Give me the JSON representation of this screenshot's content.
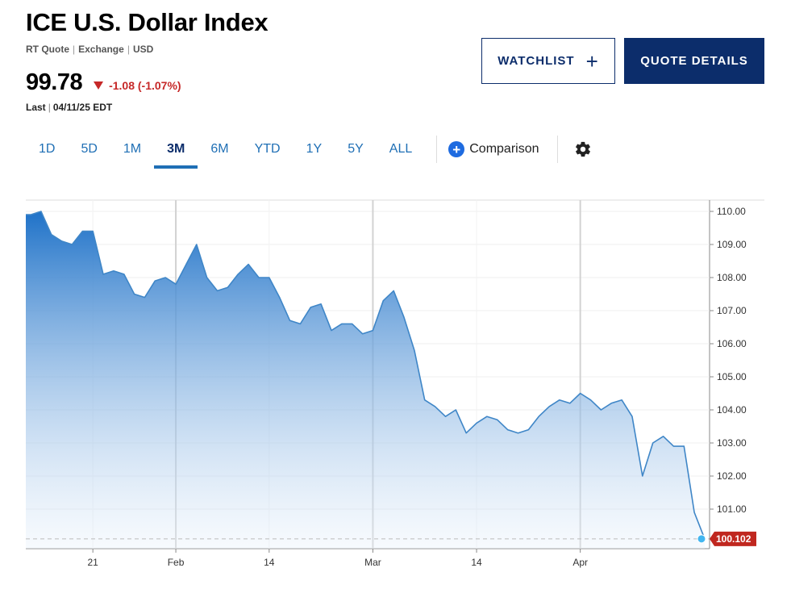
{
  "header": {
    "title": "ICE U.S. Dollar Index",
    "meta": [
      "RT Quote",
      "Exchange",
      "USD"
    ],
    "price": "99.78",
    "change": "-1.08 (-1.07%)",
    "last_label": "Last",
    "last_date": "04/11/25 EDT"
  },
  "actions": {
    "watchlist_label": "WATCHLIST",
    "quote_details_label": "QUOTE DETAILS"
  },
  "tabs": [
    {
      "label": "1D",
      "active": false
    },
    {
      "label": "5D",
      "active": false
    },
    {
      "label": "1M",
      "active": false
    },
    {
      "label": "3M",
      "active": true
    },
    {
      "label": "6M",
      "active": false
    },
    {
      "label": "YTD",
      "active": false
    },
    {
      "label": "1Y",
      "active": false
    },
    {
      "label": "5Y",
      "active": false
    },
    {
      "label": "ALL",
      "active": false
    }
  ],
  "comparison_label": "Comparison",
  "colors": {
    "navy": "#0c2d6b",
    "tab_blue": "#1f6fb5",
    "down_red": "#c62828",
    "line_blue": "#3f86c7",
    "marker": "#42b6f0"
  },
  "chart_data": {
    "type": "area",
    "title": "",
    "xlabel": "",
    "ylabel": "",
    "ylim": [
      100,
      110.3
    ],
    "y_ticks": [
      "110.00",
      "109.00",
      "108.00",
      "107.00",
      "106.00",
      "105.00",
      "104.00",
      "103.00",
      "102.00",
      "101.00"
    ],
    "x_ticks": [
      {
        "label": "21",
        "index": 6
      },
      {
        "label": "Feb",
        "index": 14
      },
      {
        "label": "14",
        "index": 23
      },
      {
        "label": "Mar",
        "index": 33
      },
      {
        "label": "14",
        "index": 43
      },
      {
        "label": "Apr",
        "index": 53
      }
    ],
    "last_value": "100.102",
    "values": [
      109.9,
      110.0,
      109.3,
      109.1,
      109.0,
      109.4,
      109.4,
      108.1,
      108.2,
      108.1,
      107.5,
      107.4,
      107.9,
      108.0,
      107.8,
      108.4,
      109.0,
      108.0,
      107.6,
      107.7,
      108.1,
      108.4,
      108.0,
      108.0,
      107.4,
      106.7,
      106.6,
      107.1,
      107.2,
      106.4,
      106.6,
      106.6,
      106.3,
      106.4,
      107.3,
      107.6,
      106.8,
      105.8,
      104.3,
      104.1,
      103.8,
      104.0,
      103.3,
      103.6,
      103.8,
      103.7,
      103.4,
      103.3,
      103.4,
      103.8,
      104.1,
      104.3,
      104.2,
      104.5,
      104.3,
      104.0,
      104.2,
      104.3,
      103.8,
      102.0,
      103.0,
      103.2,
      102.9,
      102.9,
      100.9,
      100.1
    ]
  }
}
